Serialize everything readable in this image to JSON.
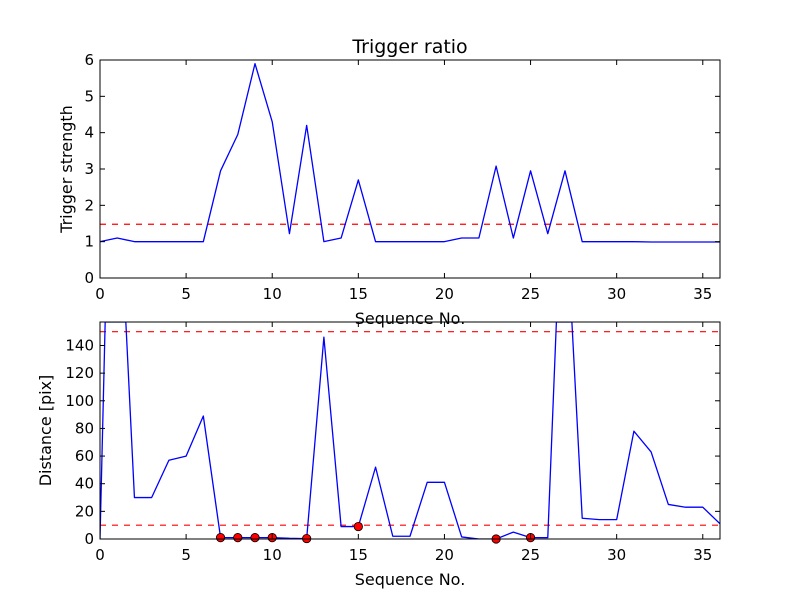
{
  "chart_data": [
    {
      "type": "line",
      "title": "Trigger ratio",
      "xlabel": "Sequence No.",
      "ylabel": "Trigger strength",
      "xlim": [
        0,
        36
      ],
      "ylim": [
        0,
        6
      ],
      "xticks": [
        0,
        5,
        10,
        15,
        20,
        25,
        30,
        35
      ],
      "yticks": [
        0,
        1,
        2,
        3,
        4,
        5,
        6
      ],
      "grid": false,
      "series": [
        {
          "color": "#0000ff",
          "x": [
            0,
            1,
            2,
            3,
            4,
            5,
            6,
            7,
            8,
            9,
            10,
            11,
            12,
            13,
            14,
            15,
            16,
            17,
            18,
            19,
            20,
            21,
            22,
            23,
            24,
            25,
            26,
            27,
            28,
            29,
            30,
            31,
            32,
            33,
            34,
            35,
            36
          ],
          "y": [
            1.0,
            1.1,
            1.0,
            1.0,
            1.0,
            1.0,
            1.0,
            2.95,
            3.95,
            5.9,
            4.3,
            1.22,
            4.2,
            1.0,
            1.1,
            2.7,
            1.0,
            1.0,
            1.0,
            1.0,
            1.0,
            1.1,
            1.1,
            3.08,
            1.1,
            2.95,
            1.22,
            2.95,
            1.0,
            1.0,
            1.0,
            1.0,
            0.99,
            0.99,
            0.99,
            0.99,
            0.99
          ]
        }
      ],
      "hlines": [
        {
          "y": 1.48,
          "color": "#ff0000",
          "style": "dashed"
        }
      ]
    },
    {
      "type": "line",
      "xlabel": "Sequence No.",
      "ylabel": "Distance [pix]",
      "xlim": [
        0,
        36
      ],
      "ylim": [
        0,
        157
      ],
      "xticks": [
        0,
        5,
        10,
        15,
        20,
        25,
        30,
        35
      ],
      "yticks": [
        0,
        20,
        40,
        60,
        80,
        100,
        120,
        140
      ],
      "grid": false,
      "series": [
        {
          "color": "#0000ff",
          "x": [
            0,
            0.3,
            1,
            1.5,
            2,
            3,
            4,
            5,
            6,
            7,
            8,
            9,
            10,
            11,
            12,
            13,
            14,
            15,
            16,
            17,
            18,
            19,
            20,
            21,
            22,
            23,
            24,
            25,
            26,
            26.5,
            27,
            27.4,
            28,
            29,
            30,
            31,
            32,
            33,
            34,
            35,
            36
          ],
          "y": [
            0,
            157,
            157,
            157,
            30,
            30,
            57,
            60,
            89,
            1,
            1,
            1,
            1,
            0.5,
            0.3,
            146,
            9,
            9,
            52,
            2,
            2,
            41,
            41,
            1.5,
            0,
            0,
            5,
            1,
            1,
            157,
            157,
            157,
            15,
            14,
            14,
            78,
            63,
            25,
            23,
            23,
            11
          ]
        }
      ],
      "markers": {
        "color": "#ff0000",
        "x": [
          7,
          8,
          9,
          10,
          12,
          15,
          23,
          25
        ],
        "y": [
          1,
          1,
          1,
          1,
          0.3,
          9,
          0,
          1
        ]
      },
      "hlines": [
        {
          "y": 150,
          "color": "#ff0000",
          "style": "dashed"
        },
        {
          "y": 10,
          "color": "#ff0000",
          "style": "dashed"
        }
      ]
    }
  ]
}
